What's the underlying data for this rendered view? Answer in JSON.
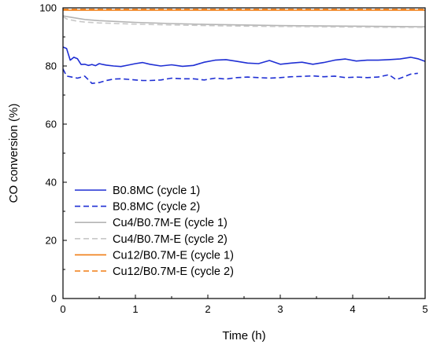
{
  "chart_data": {
    "type": "line",
    "title": "",
    "xlabel": "Time (h)",
    "ylabel": "CO conversion (%)",
    "xlim": [
      0,
      5
    ],
    "ylim": [
      0,
      100
    ],
    "x_ticks": [
      0,
      1,
      2,
      3,
      4,
      5
    ],
    "y_ticks": [
      0,
      20,
      40,
      60,
      80,
      100
    ],
    "x_tick_labels": [
      "0",
      "1",
      "2",
      "3",
      "4",
      "5"
    ],
    "y_tick_labels": [
      "0",
      "20",
      "40",
      "60",
      "80",
      "100"
    ],
    "grid": false,
    "legend_position": "lower-left",
    "series": [
      {
        "name": "B0.8MC (cycle 1)",
        "color": "#1f2fd4",
        "dash": "solid",
        "x": [
          0,
          0.05,
          0.1,
          0.15,
          0.2,
          0.25,
          0.3,
          0.35,
          0.4,
          0.45,
          0.5,
          0.55,
          0.6,
          0.7,
          0.8,
          0.9,
          1.0,
          1.1,
          1.2,
          1.35,
          1.5,
          1.65,
          1.8,
          1.95,
          2.1,
          2.25,
          2.4,
          2.55,
          2.7,
          2.85,
          3.0,
          3.15,
          3.3,
          3.45,
          3.6,
          3.75,
          3.9,
          4.05,
          4.2,
          4.35,
          4.5,
          4.65,
          4.8,
          4.9,
          5.0
        ],
        "y": [
          86.5,
          86.0,
          82.0,
          83.0,
          82.5,
          80.5,
          80.6,
          80.2,
          80.5,
          80.1,
          80.8,
          80.5,
          80.3,
          80.0,
          79.8,
          80.3,
          80.8,
          81.2,
          80.6,
          80.0,
          80.4,
          79.9,
          80.2,
          81.3,
          82.0,
          82.2,
          81.6,
          81.0,
          80.8,
          81.9,
          80.6,
          81.0,
          81.3,
          80.6,
          81.2,
          82.0,
          82.4,
          81.7,
          82.0,
          82.0,
          82.2,
          82.4,
          83.0,
          82.5,
          81.6
        ]
      },
      {
        "name": "B0.8MC (cycle 2)",
        "color": "#1f2fd4",
        "dash": "dashed",
        "x": [
          0,
          0.05,
          0.1,
          0.2,
          0.3,
          0.4,
          0.5,
          0.6,
          0.7,
          0.8,
          0.9,
          1.0,
          1.1,
          1.2,
          1.35,
          1.5,
          1.65,
          1.8,
          1.95,
          2.1,
          2.25,
          2.4,
          2.55,
          2.7,
          2.85,
          3.0,
          3.15,
          3.3,
          3.45,
          3.6,
          3.75,
          3.9,
          4.05,
          4.2,
          4.35,
          4.5,
          4.6,
          4.7,
          4.8,
          4.9
        ],
        "y": [
          79.0,
          76.5,
          76.3,
          75.8,
          76.5,
          74.0,
          74.3,
          75.0,
          75.5,
          75.6,
          75.4,
          75.2,
          75.0,
          75.0,
          75.2,
          75.8,
          75.6,
          75.6,
          75.2,
          75.8,
          75.5,
          76.0,
          76.2,
          76.0,
          75.8,
          76.0,
          76.3,
          76.4,
          76.6,
          76.3,
          76.5,
          76.0,
          76.2,
          76.0,
          76.2,
          77.0,
          75.3,
          76.2,
          77.2,
          77.5
        ]
      },
      {
        "name": "Cu4/B0.7M-E (cycle 1)",
        "color": "#b4b4b4",
        "dash": "solid",
        "x": [
          0,
          0.05,
          0.1,
          0.2,
          0.3,
          0.5,
          0.75,
          1.0,
          1.5,
          2.0,
          2.5,
          3.0,
          3.5,
          4.0,
          4.5,
          5.0
        ],
        "y": [
          97.3,
          97.0,
          96.8,
          96.4,
          96.0,
          95.6,
          95.3,
          95.0,
          94.6,
          94.3,
          94.1,
          93.9,
          93.8,
          93.7,
          93.6,
          93.5
        ]
      },
      {
        "name": "Cu4/B0.7M-E (cycle 2)",
        "color": "#c8c8c8",
        "dash": "dashed",
        "x": [
          0,
          0.05,
          0.1,
          0.2,
          0.3,
          0.5,
          0.75,
          1.0,
          1.5,
          2.0,
          2.5,
          3.0,
          3.5,
          4.0,
          4.5,
          5.0
        ],
        "y": [
          97.0,
          96.2,
          95.9,
          95.4,
          95.1,
          94.8,
          94.6,
          94.4,
          94.1,
          93.9,
          93.7,
          93.6,
          93.5,
          93.4,
          93.3,
          93.3
        ]
      },
      {
        "name": "Cu12/B0.7M-E (cycle 1)",
        "color": "#f07d14",
        "dash": "solid",
        "x": [
          0,
          1,
          2,
          3,
          4,
          5
        ],
        "y": [
          99.2,
          99.2,
          99.2,
          99.2,
          99.2,
          99.2
        ]
      },
      {
        "name": "Cu12/B0.7M-E (cycle 2)",
        "color": "#f07d14",
        "dash": "dashed",
        "x": [
          0,
          1,
          2,
          3,
          4,
          5
        ],
        "y": [
          99.5,
          99.5,
          99.5,
          99.5,
          99.5,
          99.5
        ]
      }
    ]
  }
}
